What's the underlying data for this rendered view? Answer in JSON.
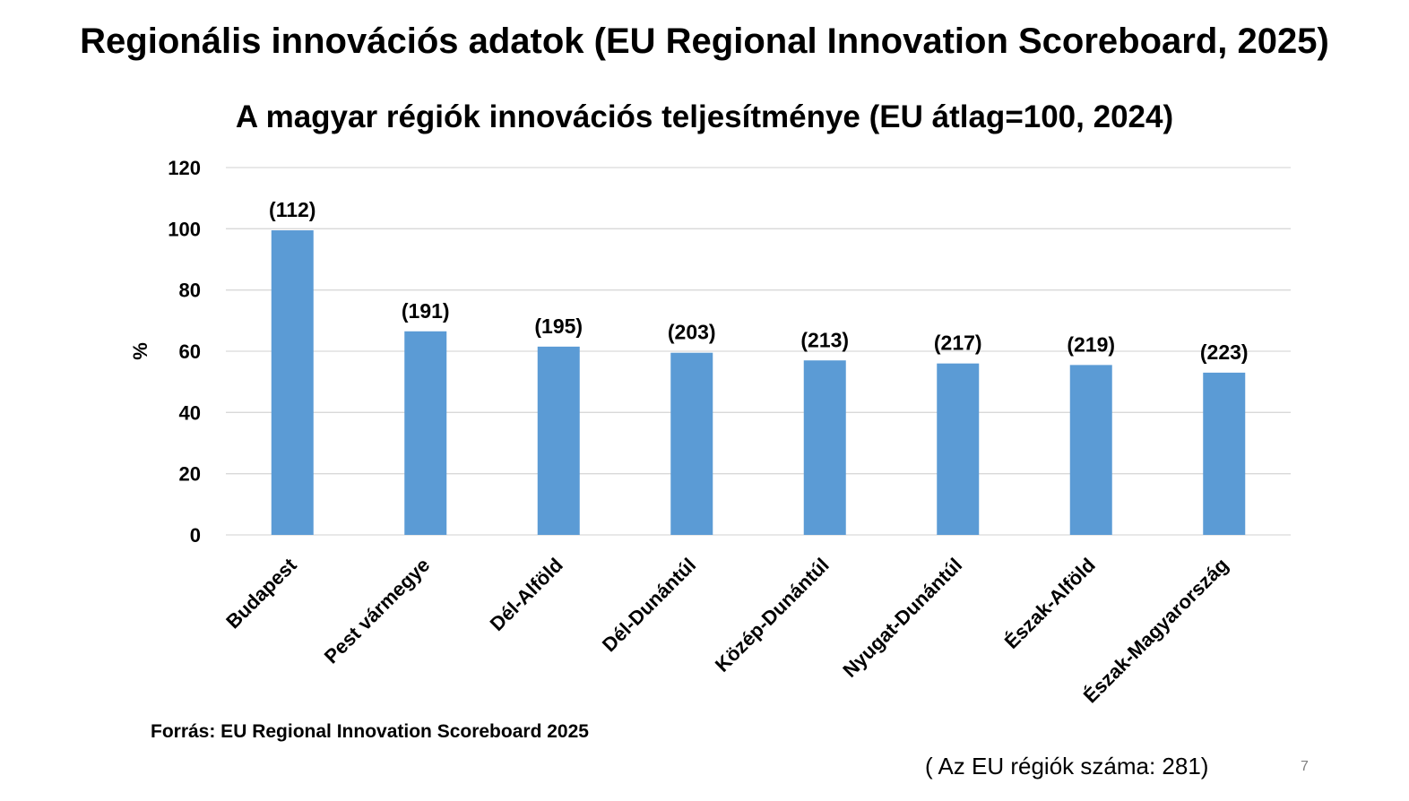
{
  "slide": {
    "title": "Regionális innovációs adatok (EU Regional Innovation Scoreboard, 2025)",
    "source": "Forrás: EU Regional Innovation Scoreboard 2025",
    "region_count_note": "( Az EU régiók száma: 281)",
    "slide_number": "7"
  },
  "colors": {
    "bar": "#5b9bd5",
    "grid": "#d9d9d9",
    "text": "#000000"
  },
  "chart_data": {
    "type": "bar",
    "title": "A magyar régiók innovációs teljesítménye (EU átlag=100, 2024)",
    "xlabel": "",
    "ylabel": "%",
    "ylim": [
      0,
      120
    ],
    "yticks": [
      0,
      20,
      40,
      60,
      80,
      100,
      120
    ],
    "grid": true,
    "categories": [
      "Budapest",
      "Pest vármegye",
      "Dél-Alföld",
      "Dél-Dunántúl",
      "Közép-Dunántúl",
      "Nyugat-Dunántúl",
      "Észak-Alföld",
      "Észak-Magyarország"
    ],
    "values": [
      99.5,
      66.5,
      61.5,
      59.5,
      57,
      56,
      55.5,
      53
    ],
    "data_labels": [
      "(112)",
      "(191)",
      "(195)",
      "(203)",
      "(213)",
      "(217)",
      "(219)",
      "(223)"
    ]
  }
}
